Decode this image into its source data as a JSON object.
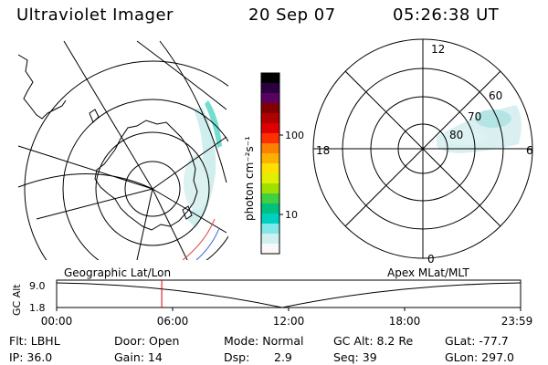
{
  "header": {
    "title": "Ultraviolet Imager",
    "date": "20 Sep 07",
    "time": "05:26:38 UT"
  },
  "colorbar": {
    "unit_label": "photon cm⁻²s⁻¹",
    "ticks": [
      "100",
      "10"
    ],
    "colors": [
      "#000000",
      "#2a0040",
      "#5a0060",
      "#800000",
      "#b00000",
      "#e00000",
      "#ff3000",
      "#ff8000",
      "#ffb000",
      "#ffe000",
      "#e0f000",
      "#a0e000",
      "#40d040",
      "#00c080",
      "#00d0c0",
      "#80e8e8",
      "#d0f0f0",
      "#f8f8f8"
    ]
  },
  "polar_plot": {
    "labels": {
      "top": "12",
      "bottom": "0",
      "left": "18",
      "right": "6"
    },
    "rings": [
      "60",
      "70",
      "80"
    ]
  },
  "timeline": {
    "left_caption": "Geographic Lat/Lon",
    "right_caption": "Apex MLat/MLT",
    "axis_label": "GC Alt",
    "y_ticks": [
      "9.0",
      "1.8"
    ],
    "x_ticks": [
      "00:00",
      "06:00",
      "12:00",
      "18:00",
      "23:59"
    ],
    "marker_color": "#e00000",
    "marker_time_hours": 5.44
  },
  "footer": {
    "flt": "Flt: LBHL",
    "door": "Door: Open",
    "mode": "Mode: Normal",
    "gc_alt": "GC Alt: 8.2 Re",
    "glat": "GLat: -77.7",
    "ip": "IP: 36.0",
    "gain": "Gain: 14",
    "dsp_label": "Dsp:",
    "dsp_value": "2.9",
    "seq": "Seq: 39",
    "glon": "GLon: 297.0"
  }
}
